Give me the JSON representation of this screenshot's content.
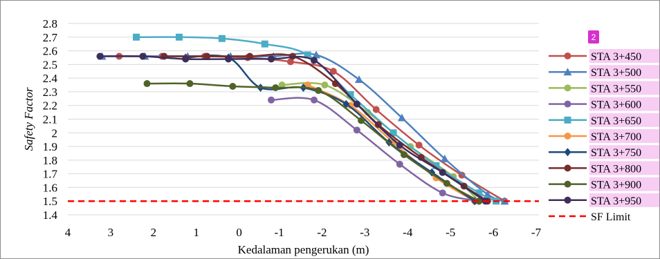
{
  "chart_data": {
    "type": "line",
    "xlabel": "Kedalaman pengerukan (m)",
    "ylabel": "Safety Factor",
    "xlim": [
      4,
      -7
    ],
    "ylim": [
      1.4,
      2.8
    ],
    "x_ticks": [
      "4",
      "3",
      "2",
      "1",
      "0",
      "-1",
      "-2",
      "-3",
      "-4",
      "-5",
      "-6",
      "-7"
    ],
    "y_ticks": [
      "1.4",
      "1.5",
      "1.6",
      "1.7",
      "1.8",
      "1.9",
      "2",
      "2.1",
      "2.2",
      "2.3",
      "2.4",
      "2.5",
      "2.6",
      "2.7",
      "2.8"
    ],
    "grid": "horizontal",
    "legend_position": "right",
    "badge": "2",
    "series": [
      {
        "name": "STA 3+450",
        "color": "#c0504d",
        "marker": "circle",
        "x": [
          2.8,
          1.8,
          0.8,
          -0.2,
          -1.2,
          -2.2,
          -3.2,
          -4.2,
          -5.2,
          -6.2
        ],
        "y": [
          2.56,
          2.56,
          2.56,
          2.55,
          2.52,
          2.45,
          2.17,
          1.91,
          1.69,
          1.5
        ]
      },
      {
        "name": "STA 3+500",
        "color": "#4f81bd",
        "marker": "triangle",
        "x": [
          3.2,
          2.2,
          1.2,
          0.2,
          -0.8,
          -1.8,
          -2.8,
          -3.8,
          -4.8,
          -5.8,
          -6.2
        ],
        "y": [
          2.56,
          2.56,
          2.56,
          2.56,
          2.56,
          2.57,
          2.39,
          2.11,
          1.81,
          1.55,
          1.5
        ]
      },
      {
        "name": "STA 3+550",
        "color": "#9bbb59",
        "marker": "circle",
        "x": [
          -1.0,
          -2.0,
          -3.0,
          -4.0,
          -5.0,
          -5.6
        ],
        "y": [
          2.35,
          2.35,
          2.15,
          1.9,
          1.68,
          1.5
        ]
      },
      {
        "name": "STA 3+600",
        "color": "#8064a2",
        "marker": "circle",
        "x": [
          -0.75,
          -1.75,
          -2.75,
          -3.75,
          -4.75,
          -5.6
        ],
        "y": [
          2.24,
          2.24,
          2.02,
          1.77,
          1.56,
          1.5
        ]
      },
      {
        "name": "STA 3+650",
        "color": "#4bacc6",
        "marker": "square",
        "x": [
          2.4,
          1.4,
          0.4,
          -0.6,
          -1.6,
          -2.6,
          -3.6,
          -4.6,
          -5.6,
          -6.0
        ],
        "y": [
          2.7,
          2.7,
          2.69,
          2.65,
          2.57,
          2.28,
          2.0,
          1.76,
          1.56,
          1.5
        ]
      },
      {
        "name": "STA 3+700",
        "color": "#f79646",
        "marker": "circle",
        "x": [
          -1.6,
          -2.6,
          -3.6,
          -4.6,
          -5.5
        ],
        "y": [
          2.35,
          2.2,
          1.93,
          1.67,
          1.5
        ]
      },
      {
        "name": "STA 3+750",
        "color": "#1f497d",
        "marker": "diamond",
        "x": [
          1.25,
          0.25,
          -0.5,
          -1.5,
          -2.5,
          -3.5,
          -4.5,
          -5.5
        ],
        "y": [
          2.55,
          2.55,
          2.33,
          2.33,
          2.21,
          1.93,
          1.71,
          1.5
        ]
      },
      {
        "name": "STA 3+800",
        "color": "#772c2a",
        "marker": "circle",
        "x": [
          1.75,
          0.75,
          -0.25,
          -1.25,
          -2.25,
          -3.25,
          -4.25,
          -5.25,
          -5.8
        ],
        "y": [
          2.56,
          2.56,
          2.56,
          2.56,
          2.36,
          2.06,
          1.82,
          1.61,
          1.5
        ]
      },
      {
        "name": "STA 3+900",
        "color": "#4f6228",
        "marker": "circle",
        "x": [
          2.15,
          1.15,
          0.15,
          -0.85,
          -1.85,
          -2.85,
          -3.85,
          -4.85,
          -5.6
        ],
        "y": [
          2.36,
          2.36,
          2.34,
          2.33,
          2.31,
          2.09,
          1.84,
          1.63,
          1.5
        ]
      },
      {
        "name": "STA 3+950",
        "color": "#3f2d5a",
        "marker": "circle",
        "x": [
          3.25,
          2.25,
          1.25,
          0.25,
          -0.75,
          -1.75,
          -2.75,
          -3.75,
          -4.75,
          -5.75
        ],
        "y": [
          2.56,
          2.56,
          2.54,
          2.54,
          2.54,
          2.53,
          2.21,
          1.91,
          1.71,
          1.5
        ]
      },
      {
        "name": "SF Limit",
        "color": "#ff0000",
        "dashed": true,
        "marker": "none",
        "x": [
          4,
          -7
        ],
        "y": [
          1.5,
          1.5
        ]
      }
    ]
  }
}
